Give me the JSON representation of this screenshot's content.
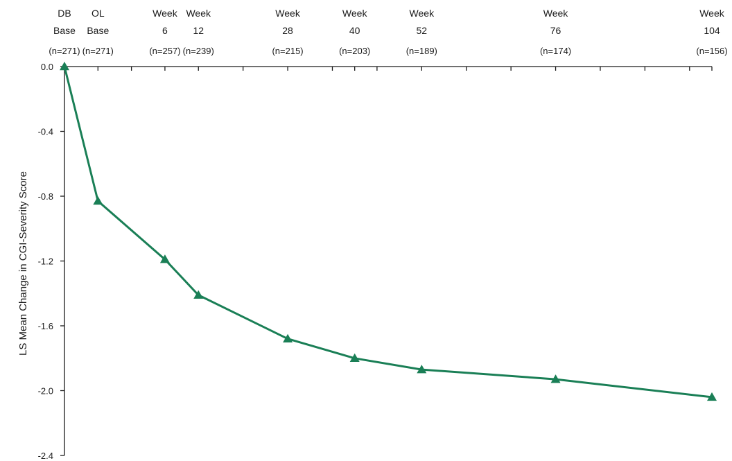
{
  "chart_data": {
    "type": "line",
    "title": "",
    "xlabel": "",
    "ylabel": "LS Mean Change in CGI-Severity Score",
    "categories": [
      {
        "line1": "DB",
        "line2": "Base",
        "n": "(n=271)"
      },
      {
        "line1": "OL",
        "line2": "Base",
        "n": "(n=271)"
      },
      {
        "line1": "Week",
        "line2": "6",
        "n": "(n=257)"
      },
      {
        "line1": "Week",
        "line2": "12",
        "n": "(n=239)"
      },
      {
        "line1": "Week",
        "line2": "28",
        "n": "(n=215)"
      },
      {
        "line1": "Week",
        "line2": "40",
        "n": "(n=203)"
      },
      {
        "line1": "Week",
        "line2": "52",
        "n": "(n=189)"
      },
      {
        "line1": "Week",
        "line2": "76",
        "n": "(n=174)"
      },
      {
        "line1": "Week",
        "line2": "104",
        "n": "(n=156)"
      }
    ],
    "x": [
      -12,
      -6,
      6,
      12,
      28,
      40,
      52,
      76,
      104
    ],
    "xlim": [
      -12,
      104
    ],
    "xticks": [
      -12,
      -6,
      0,
      6,
      12,
      20,
      28,
      36,
      40,
      44,
      52,
      60,
      68,
      76,
      84,
      92,
      100,
      104
    ],
    "series": [
      {
        "values": [
          0.0,
          -0.83,
          -1.19,
          -1.41,
          -1.68,
          -1.8,
          -1.87,
          -1.93,
          -2.04
        ],
        "color": "#1a7f56",
        "marker": "triangle"
      }
    ],
    "ylim": [
      -2.4,
      0.0
    ],
    "yticks": [
      "0.0",
      "-0.4",
      "-0.8",
      "-1.2",
      "-1.6",
      "-2.0",
      "-2.4"
    ],
    "ytick_values": [
      0.0,
      -0.4,
      -0.8,
      -1.2,
      -1.6,
      -2.0,
      -2.4
    ],
    "x_axis_position": "top",
    "grid": false,
    "legend": "none"
  }
}
